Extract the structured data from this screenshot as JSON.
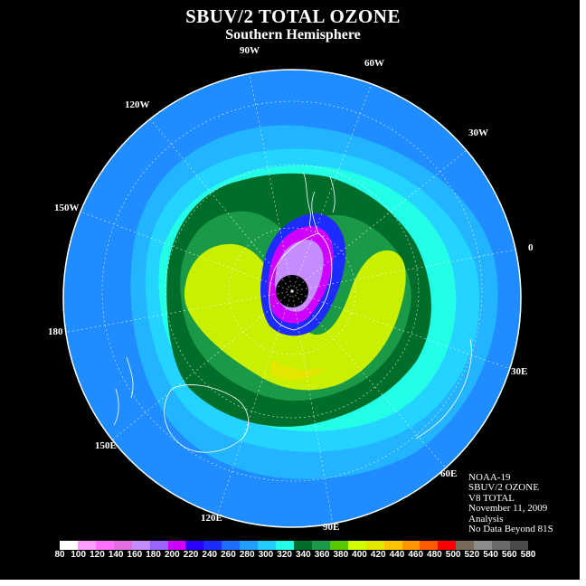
{
  "title": "SBUV/2 TOTAL OZONE",
  "subtitle": "Southern Hemisphere",
  "longitude_labels": [
    "90W",
    "60W",
    "30W",
    "120W",
    "150W",
    "0",
    "180",
    "30E",
    "150E",
    "60E",
    "120E",
    "90E"
  ],
  "info": {
    "satellite": "NOAA-19",
    "product": "SBUV/2 OZONE",
    "version": "V8 TOTAL",
    "date": "November 11, 2009",
    "type": "Analysis",
    "note": "No Data Beyond 81S"
  },
  "legend": {
    "unit_values": [
      "80",
      "100",
      "120",
      "140",
      "160",
      "180",
      "200",
      "220",
      "240",
      "260",
      "280",
      "300",
      "320",
      "340",
      "360",
      "380",
      "400",
      "420",
      "440",
      "460",
      "480",
      "500",
      "520",
      "540",
      "560",
      "580"
    ],
    "colors": [
      "#ffffff",
      "#ff9cff",
      "#ff70ff",
      "#e06ee0",
      "#c48cff",
      "#9a63ff",
      "#d000ff",
      "#2a00ff",
      "#1c2cff",
      "#1f6cff",
      "#1f9eff",
      "#22ccff",
      "#22ffe6",
      "#006e2a",
      "#1a9a46",
      "#55c800",
      "#d0ff00",
      "#e4e600",
      "#ffc400",
      "#ff9600",
      "#ff5a00",
      "#ff0000",
      "#7a6a5a",
      "#8c8c8c",
      "#6a6a6a",
      "#4a4a4a"
    ]
  },
  "colors": {
    "background": "#000000",
    "ocean_low": "#1f8cff",
    "mid": "#22ccff",
    "collar": "#22ffe6",
    "green_dark": "#006e2a",
    "green_mid": "#1a9a46",
    "yellowgreen": "#c8f000",
    "hole": "#c48cff"
  }
}
